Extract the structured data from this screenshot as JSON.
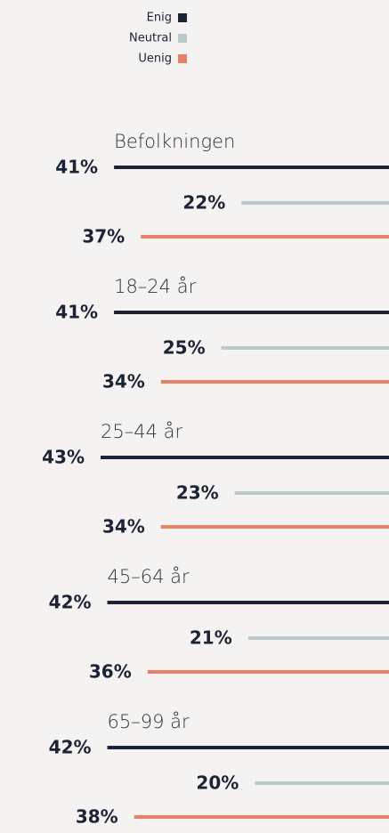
{
  "chart_data": {
    "type": "bar",
    "orientation": "horizontal",
    "categories": [
      "Befolkningen",
      "18–24 år",
      "25–44 år",
      "45–64 år",
      "65–99 år"
    ],
    "series": [
      {
        "name": "Enig",
        "color": "#1b2436",
        "values": [
          41,
          41,
          43,
          42,
          42
        ],
        "value_labels": [
          "41%",
          "41%",
          "43%",
          "42%",
          "42%"
        ]
      },
      {
        "name": "Neutral",
        "color": "#b9c9cc",
        "values": [
          22,
          25,
          23,
          21,
          20
        ],
        "value_labels": [
          "22%",
          "25%",
          "23%",
          "21%",
          "20%"
        ]
      },
      {
        "name": "Uenig",
        "color": "#e9806a",
        "values": [
          37,
          34,
          34,
          36,
          38
        ],
        "value_labels": [
          "37%",
          "34%",
          "34%",
          "36%",
          "38%"
        ]
      }
    ],
    "xlim": [
      0,
      58
    ],
    "legend": "top-left"
  }
}
